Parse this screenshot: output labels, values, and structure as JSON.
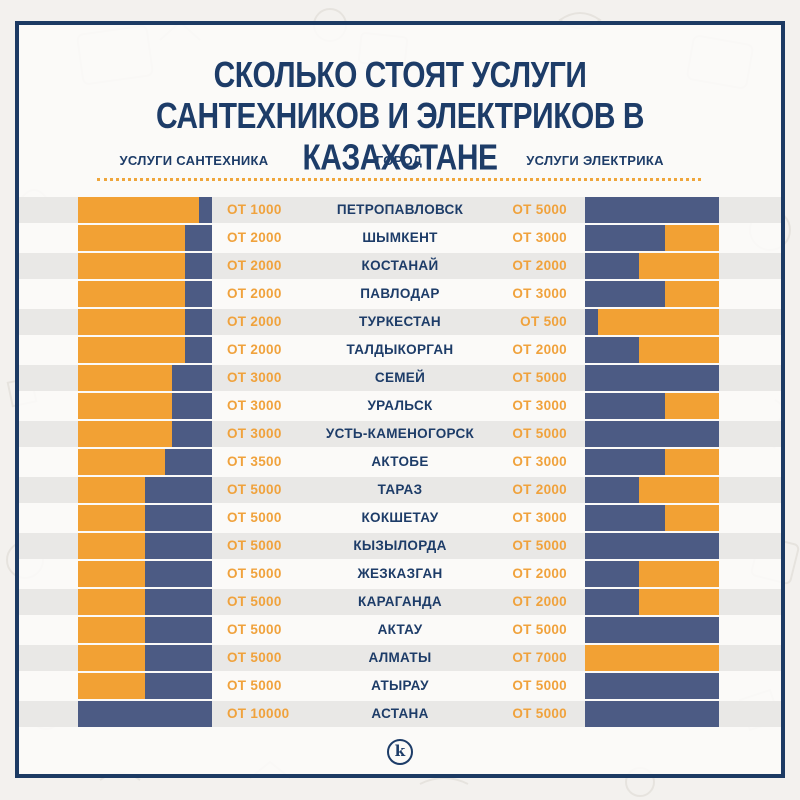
{
  "header": {
    "title_lines": [
      "СКОЛЬКО СТОЯТ УСЛУГИ",
      "САНТЕХНИКОВ И ЭЛЕКТРИКОВ В КАЗАХСТАНЕ"
    ],
    "columns": [
      "УСЛУГИ САНТЕХНИКА",
      "ГОРОД",
      "УСЛУГИ ЭЛЕКТРИКА"
    ]
  },
  "footer": {
    "logo_letter": "k"
  },
  "colors": {
    "page_bg": "#F3F1EE",
    "card_bg": "#FCFBF9",
    "border": "#1C3A63",
    "navy_text": "#1D3C68",
    "navy_bar": "#4C5B84",
    "orange": "#F2A134",
    "orange_text": "#F0A23C",
    "stripe": "#E9E8E6",
    "dot": "#EFA63C"
  },
  "rows": [
    {
      "city": "ПЕТРОПАВЛОВСК",
      "plumber_label": "ОТ 1000",
      "plumber_price": 1000,
      "electrician_label": "ОТ 5000",
      "electrician_price": 5000
    },
    {
      "city": "ШЫМКЕНТ",
      "plumber_label": "ОТ 2000",
      "plumber_price": 2000,
      "electrician_label": "ОТ 3000",
      "electrician_price": 3000
    },
    {
      "city": "КОСТАНАЙ",
      "plumber_label": "ОТ 2000",
      "plumber_price": 2000,
      "electrician_label": "ОТ 2000",
      "electrician_price": 2000
    },
    {
      "city": "ПАВЛОДАР",
      "plumber_label": "ОТ 2000",
      "plumber_price": 2000,
      "electrician_label": "ОТ 3000",
      "electrician_price": 3000
    },
    {
      "city": "ТУРКЕСТАН",
      "plumber_label": "ОТ 2000",
      "plumber_price": 2000,
      "electrician_label": "ОТ 500",
      "electrician_price": 500
    },
    {
      "city": "ТАЛДЫКОРГАН",
      "plumber_label": "ОТ 2000",
      "plumber_price": 2000,
      "electrician_label": "ОТ 2000",
      "electrician_price": 2000
    },
    {
      "city": "СЕМЕЙ",
      "plumber_label": "ОТ 3000",
      "plumber_price": 3000,
      "electrician_label": "ОТ 5000",
      "electrician_price": 5000
    },
    {
      "city": "УРАЛЬСК",
      "plumber_label": "ОТ 3000",
      "plumber_price": 3000,
      "electrician_label": "ОТ 3000",
      "electrician_price": 3000
    },
    {
      "city": "УСТЬ-КАМЕНОГОРСК",
      "plumber_label": "ОТ 3000",
      "plumber_price": 3000,
      "electrician_label": "ОТ 5000",
      "electrician_price": 5000
    },
    {
      "city": "АКТОБЕ",
      "plumber_label": "ОТ 3500",
      "plumber_price": 3500,
      "electrician_label": "ОТ 3000",
      "electrician_price": 3000
    },
    {
      "city": "ТАРАЗ",
      "plumber_label": "ОТ 5000",
      "plumber_price": 5000,
      "electrician_label": "ОТ 2000",
      "electrician_price": 2000
    },
    {
      "city": "КОКШЕТАУ",
      "plumber_label": "ОТ 5000",
      "plumber_price": 5000,
      "electrician_label": "ОТ 3000",
      "electrician_price": 3000
    },
    {
      "city": "КЫЗЫЛОРДА",
      "plumber_label": "ОТ 5000",
      "plumber_price": 5000,
      "electrician_label": "ОТ 5000",
      "electrician_price": 5000
    },
    {
      "city": "ЖЕЗКАЗГАН",
      "plumber_label": "ОТ 5000",
      "plumber_price": 5000,
      "electrician_label": "ОТ 2000",
      "electrician_price": 2000
    },
    {
      "city": "КАРАГАНДА",
      "plumber_label": "ОТ 5000",
      "plumber_price": 5000,
      "electrician_label": "ОТ 2000",
      "electrician_price": 2000
    },
    {
      "city": "АКТАУ",
      "plumber_label": "ОТ 5000",
      "plumber_price": 5000,
      "electrician_label": "ОТ 5000",
      "electrician_price": 5000
    },
    {
      "city": "АЛМАТЫ",
      "plumber_label": "ОТ 5000",
      "plumber_price": 5000,
      "electrician_label": "ОТ 7000",
      "electrician_price": 7000
    },
    {
      "city": "АТЫРАУ",
      "plumber_label": "ОТ 5000",
      "plumber_price": 5000,
      "electrician_label": "ОТ 5000",
      "electrician_price": 5000
    },
    {
      "city": "АСТАНА",
      "plumber_label": "ОТ 10000",
      "plumber_price": 10000,
      "electrician_label": "ОТ 5000",
      "electrician_price": 5000
    }
  ],
  "chart_data": {
    "type": "bar",
    "title": "СКОЛЬКО СТОЯТ УСЛУГИ САНТЕХНИКОВ И ЭЛЕКТРИКОВ В КАЗАХСТАНЕ",
    "categories": [
      "ПЕТРОПАВЛОВСК",
      "ШЫМКЕНТ",
      "КОСТАНАЙ",
      "ПАВЛОДАР",
      "ТУРКЕСТАН",
      "ТАЛДЫКОРГАН",
      "СЕМЕЙ",
      "УРАЛЬСК",
      "УСТЬ-КАМЕНОГОРСК",
      "АКТОБЕ",
      "ТАРАЗ",
      "КОКШЕТАУ",
      "КЫЗЫЛОРДА",
      "ЖЕЗКАЗГАН",
      "КАРАГАНДА",
      "АКТАУ",
      "АЛМАТЫ",
      "АТЫРАУ",
      "АСТАНА"
    ],
    "series": [
      {
        "name": "УСЛУГИ САНТЕХНИКА",
        "values": [
          1000,
          2000,
          2000,
          2000,
          2000,
          2000,
          3000,
          3000,
          3000,
          3500,
          5000,
          5000,
          5000,
          5000,
          5000,
          5000,
          5000,
          5000,
          10000
        ],
        "axis_max": 10000,
        "bar_fill_anchor": "right"
      },
      {
        "name": "УСЛУГИ ЭЛЕКТРИКА",
        "values": [
          5000,
          3000,
          2000,
          3000,
          500,
          2000,
          5000,
          3000,
          5000,
          3000,
          2000,
          3000,
          5000,
          2000,
          2000,
          5000,
          7000,
          5000,
          5000
        ],
        "axis_max": 5000,
        "bar_fill_anchor": "left"
      }
    ],
    "value_label_format": "ОТ {value}",
    "grid": false,
    "legend_position": "column-headers"
  }
}
